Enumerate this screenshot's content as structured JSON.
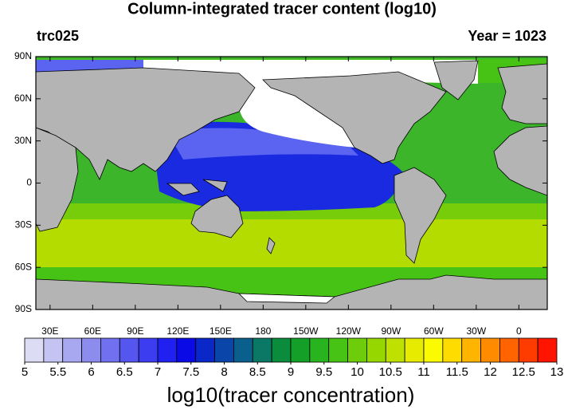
{
  "title": "Column-integrated tracer content (log10)",
  "left_label": "trc025",
  "right_label": "Year = 1023",
  "lat_ticks": [
    {
      "value": 90,
      "label": "90N"
    },
    {
      "value": 60,
      "label": "60N"
    },
    {
      "value": 30,
      "label": "30N"
    },
    {
      "value": 0,
      "label": "0"
    },
    {
      "value": -30,
      "label": "30S"
    },
    {
      "value": -60,
      "label": "60S"
    },
    {
      "value": -90,
      "label": "90S"
    }
  ],
  "lon_ticks": [
    {
      "value": 30,
      "label": "30E"
    },
    {
      "value": 60,
      "label": "60E"
    },
    {
      "value": 90,
      "label": "90E"
    },
    {
      "value": 120,
      "label": "120E"
    },
    {
      "value": 150,
      "label": "150E"
    },
    {
      "value": 180,
      "label": "180"
    },
    {
      "value": 210,
      "label": "150W"
    },
    {
      "value": 240,
      "label": "120W"
    },
    {
      "value": 270,
      "label": "90W"
    },
    {
      "value": 300,
      "label": "60W"
    },
    {
      "value": 330,
      "label": "30W"
    },
    {
      "value": 360,
      "label": "0"
    }
  ],
  "colorbar": {
    "title": "log10(tracer concentration)",
    "ticks": [
      5,
      5.5,
      6,
      6.5,
      7,
      7.5,
      8,
      8.5,
      9,
      9.5,
      10,
      10.5,
      11,
      11.5,
      12,
      12.5,
      13
    ],
    "colors": [
      "#dcdcf5",
      "#c4c4f3",
      "#a8a8f0",
      "#8c8cef",
      "#7070f0",
      "#5555f0",
      "#3c3cf0",
      "#2020f0",
      "#0a0ae6",
      "#0a28c8",
      "#0a46aa",
      "#0a5f8c",
      "#0a7864",
      "#0a8c3c",
      "#14a028",
      "#28b41e",
      "#46c314",
      "#6ecd0a",
      "#96d700",
      "#bee100",
      "#e6eb00",
      "#fafa00",
      "#ffdc00",
      "#ffb400",
      "#ff8c00",
      "#ff6400",
      "#ff3c00",
      "#ff1400"
    ]
  }
}
